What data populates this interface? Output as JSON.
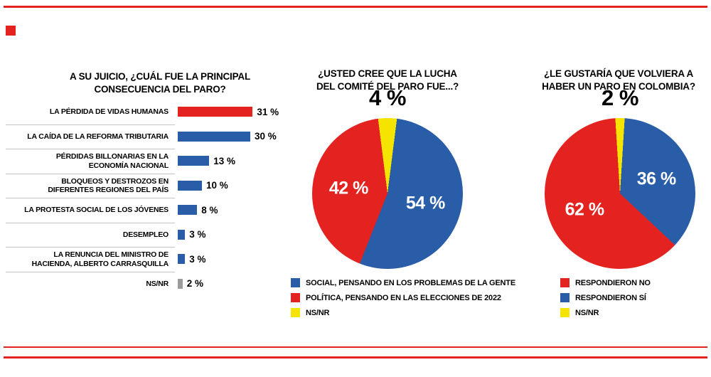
{
  "style": {
    "accent_red": "#e42320",
    "accent_blue": "#2a5da8",
    "accent_yellow": "#f5e400",
    "neutral_gray": "#9c9c9b"
  },
  "chart_data": [
    {
      "type": "bar",
      "title": "A SU JUICIO, ¿CUÁL FUE LA PRINCIPAL\nCONSECUENCIA DEL PARO?",
      "categories": [
        "LA PÉRDIDA DE VIDAS HUMANAS",
        "LA CAÍDA DE LA REFORMA TRIBUTARIA",
        "PÉRDIDAS BILLONARIAS EN LA ECONOMÍA NACIONAL",
        "BLOQUEOS Y DESTROZOS EN DIFERENTES REGIONES DEL PAÍS",
        "LA PROTESTA SOCIAL DE LOS JÓVENES",
        "DESEMPLEO",
        "LA RENUNCIA DEL MINISTRO DE HACIENDA, ALBERTO CARRASQUILLA",
        "NS/NR"
      ],
      "values": [
        31,
        30,
        13,
        10,
        8,
        3,
        3,
        2
      ],
      "value_labels": [
        "31 %",
        "30 %",
        "13 %",
        "10 %",
        "8 %",
        "3 %",
        "3 %",
        "2 %"
      ],
      "colors": [
        "#e42320",
        "#2a5da8",
        "#2a5da8",
        "#2a5da8",
        "#2a5da8",
        "#2a5da8",
        "#2a5da8",
        "#9c9c9b"
      ],
      "unit": "%",
      "xlim": [
        0,
        31
      ]
    },
    {
      "type": "pie",
      "title": "¿USTED CREE QUE LA LUCHA\nDEL COMITÉ DEL PARO FUE...?",
      "callout_label": "4 %",
      "slices": [
        {
          "name": "NS/NR",
          "value": 4,
          "color": "#f5e400",
          "display": ""
        },
        {
          "name": "SOCIAL, PENSANDO EN LOS PROBLEMAS DE LA GENTE",
          "value": 54,
          "color": "#2a5da8",
          "display": "54 %"
        },
        {
          "name": "POLÍTICA, PENSANDO EN LAS ELECCIONES DE 2022",
          "value": 42,
          "color": "#e42320",
          "display": "42 %"
        }
      ],
      "legend": [
        {
          "label": "SOCIAL, PENSANDO EN LOS PROBLEMAS DE LA GENTE",
          "color": "#2a5da8"
        },
        {
          "label": "POLÍTICA, PENSANDO EN LAS ELECCIONES DE 2022",
          "color": "#e42320"
        },
        {
          "label": "NS/NR",
          "color": "#f5e400"
        }
      ]
    },
    {
      "type": "pie",
      "title": "¿LE GUSTARÍA QUE VOLVIERA A\nHABER UN PARO EN COLOMBIA?",
      "callout_label": "2 %",
      "slices": [
        {
          "name": "NS/NR",
          "value": 2,
          "color": "#f5e400",
          "display": ""
        },
        {
          "name": "RESPONDIERON SÍ",
          "value": 36,
          "color": "#2a5da8",
          "display": "36 %"
        },
        {
          "name": "RESPONDIERON NO",
          "value": 62,
          "color": "#e42320",
          "display": "62 %"
        }
      ],
      "legend": [
        {
          "label": "RESPONDIERON NO",
          "color": "#e42320"
        },
        {
          "label": "RESPONDIERON SÍ",
          "color": "#2a5da8"
        },
        {
          "label": "NS/NR",
          "color": "#f5e400"
        }
      ]
    }
  ]
}
